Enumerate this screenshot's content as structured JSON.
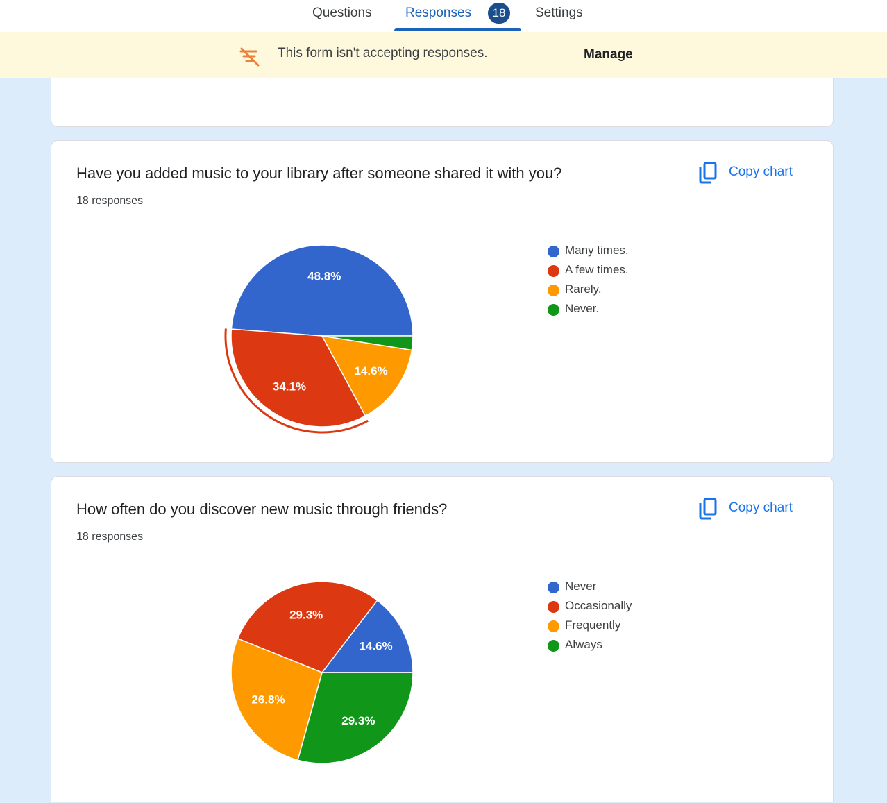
{
  "nav": {
    "tabs": [
      {
        "label": "Questions"
      },
      {
        "label": "Responses",
        "badge": "18",
        "active": true
      },
      {
        "label": "Settings"
      }
    ]
  },
  "banner": {
    "icon": "responses-off-icon",
    "text": "This form isn't accepting responses.",
    "action": "Manage"
  },
  "cards": [
    {
      "title": "Have you added music to your library after someone shared it with you?",
      "responses": "18 responses",
      "copy_label": "Copy chart",
      "legend": [
        {
          "label": "Many times.",
          "color": "#3366cc"
        },
        {
          "label": "A few times.",
          "color": "#dc3912"
        },
        {
          "label": "Rarely.",
          "color": "#ff9900"
        },
        {
          "label": "Never.",
          "color": "#109618"
        }
      ]
    },
    {
      "title": "How often do you discover new music through friends?",
      "responses": "18 responses",
      "copy_label": "Copy chart",
      "legend": [
        {
          "label": "Never",
          "color": "#3366cc"
        },
        {
          "label": "Occasionally",
          "color": "#dc3912"
        },
        {
          "label": "Frequently",
          "color": "#ff9900"
        },
        {
          "label": "Always",
          "color": "#109618"
        }
      ]
    }
  ],
  "chart_data": [
    {
      "type": "pie",
      "categories": [
        "Many times.",
        "A few times.",
        "Rarely.",
        "Never."
      ],
      "values": [
        48.8,
        34.1,
        14.6,
        2.5
      ],
      "labels": [
        "48.8%",
        "34.1%",
        "14.6%",
        ""
      ],
      "colors": [
        "#3366cc",
        "#dc3912",
        "#ff9900",
        "#109618"
      ],
      "highlighted": "A few times.",
      "legend_position": "right"
    },
    {
      "type": "pie",
      "categories": [
        "Never",
        "Occasionally",
        "Frequently",
        "Always"
      ],
      "values": [
        14.6,
        29.3,
        26.8,
        29.3
      ],
      "labels": [
        "14.6%",
        "29.3%",
        "26.8%",
        "29.3%"
      ],
      "colors": [
        "#3366cc",
        "#dc3912",
        "#ff9900",
        "#109618"
      ],
      "legend_position": "right"
    }
  ]
}
